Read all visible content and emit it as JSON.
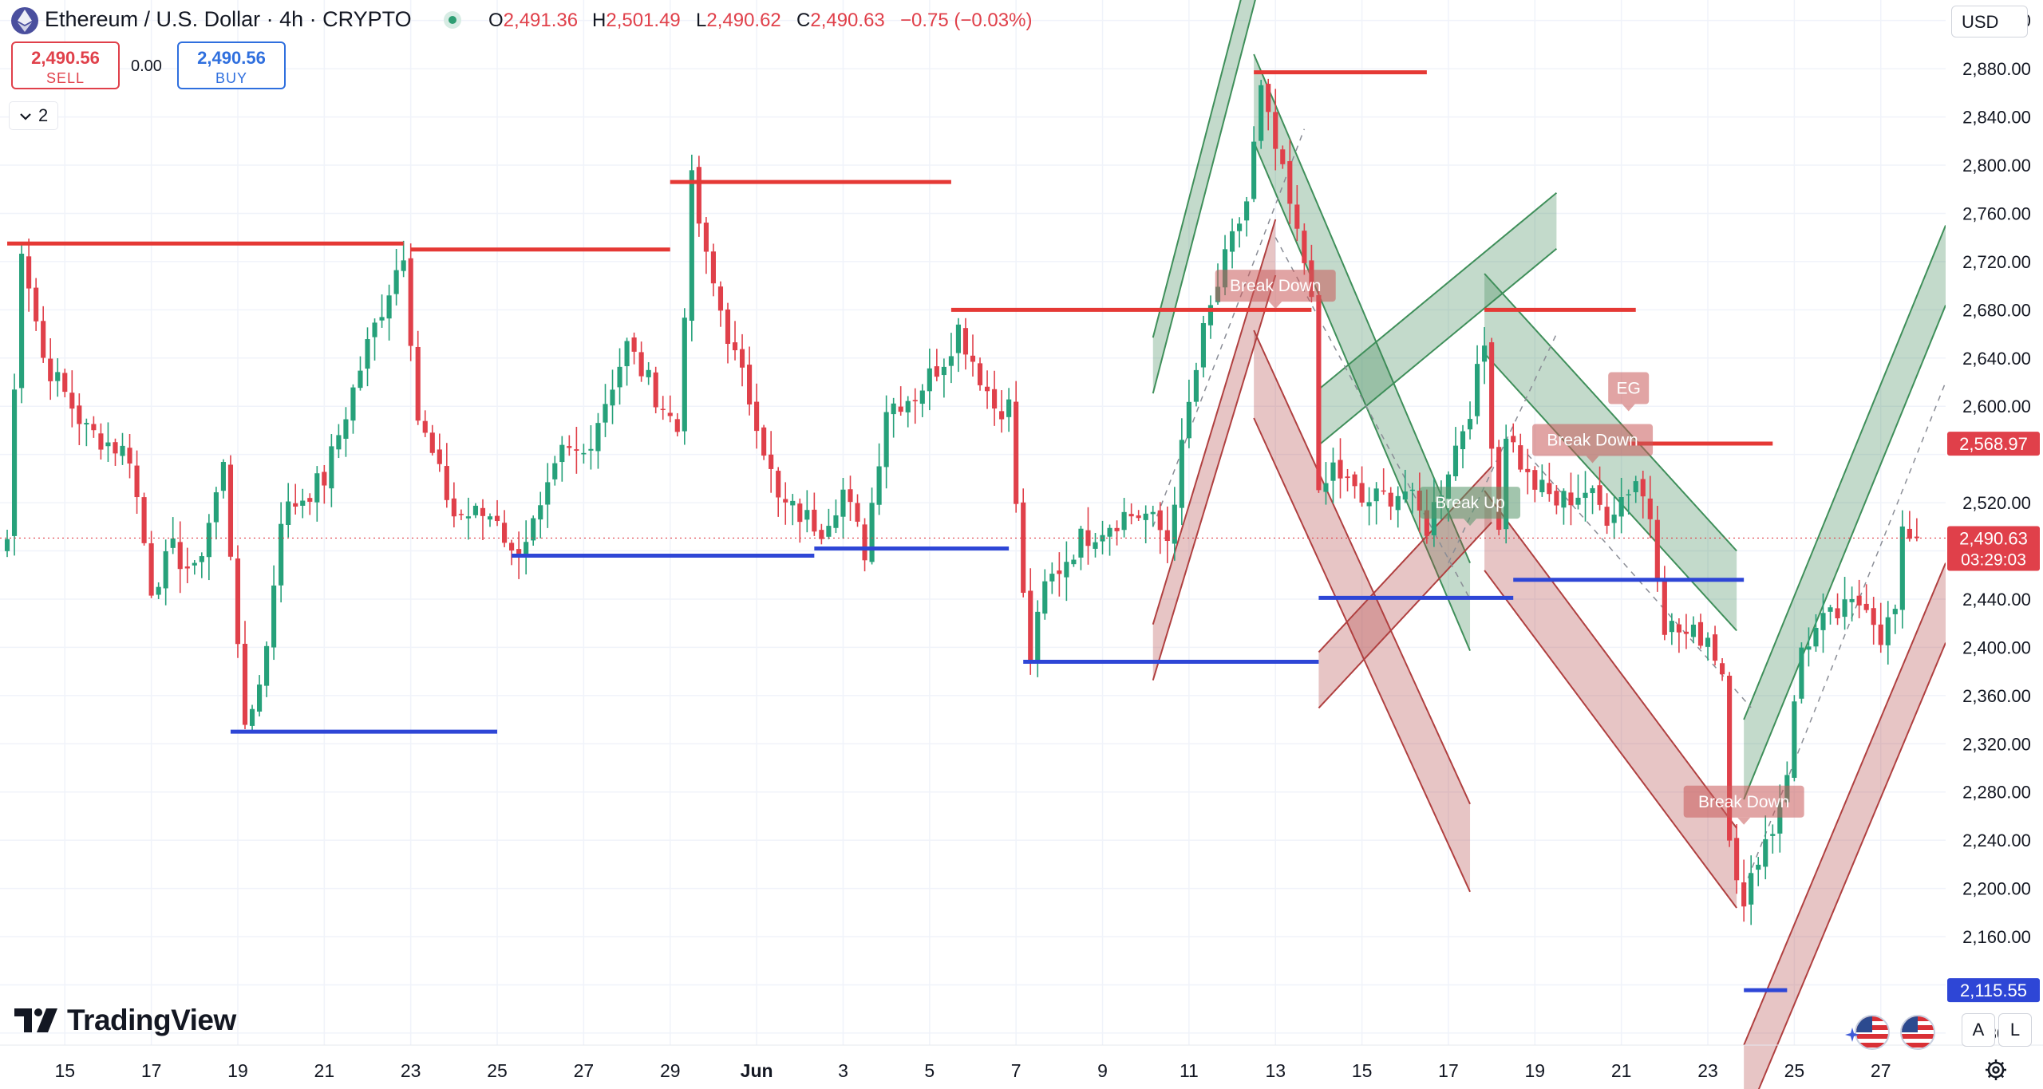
{
  "header": {
    "symbol_title": "Ethereum / U.S. Dollar · 4h · CRYPTO",
    "ohlc": [
      {
        "key": "O",
        "value": "2,491.36"
      },
      {
        "key": "H",
        "value": "2,501.49"
      },
      {
        "key": "L",
        "value": "2,490.62"
      },
      {
        "key": "C",
        "value": "2,490.63"
      }
    ],
    "change": "−0.75 (−0.03%)"
  },
  "trade": {
    "sell_price": "2,490.56",
    "sell_label": "SELL",
    "spread": "0.00",
    "buy_price": "2,490.56",
    "buy_label": "BUY"
  },
  "indicators_collapse": {
    "icon": "chevron-down-icon",
    "count": "2"
  },
  "currency": "USD",
  "brand": {
    "name": "TradingView"
  },
  "bottom_controls": {
    "auto": "A",
    "log": "L"
  },
  "colors": {
    "bull": "#26a17a",
    "bear": "#e0404a",
    "resistance": "#e53935",
    "support": "#2e46d6",
    "channel_green": "#3f8f5a",
    "channel_red": "#b04040"
  },
  "chart_data": {
    "type": "candlestick",
    "timeframe": "4h",
    "y_axis": {
      "ticks": [
        2080,
        2120,
        2160,
        2200,
        2240,
        2280,
        2320,
        2360,
        2400,
        2440,
        2480,
        2520,
        2560,
        2600,
        2640,
        2680,
        2720,
        2760,
        2800,
        2840,
        2880,
        2920
      ],
      "tick_labels": [
        "2,080.00",
        "2,160.00",
        "2,200.00",
        "2,240.00",
        "2,280.00",
        "2,320.00",
        "2,360.00",
        "2,400.00",
        "2,440.00",
        "2,520.00",
        "2,600.00",
        "2,640.00",
        "2,680.00",
        "2,720.00",
        "2,760.00",
        "2,800.00",
        "2,840.00",
        "2,880.00",
        "2,920.00"
      ],
      "tick_values": [
        2080,
        2160,
        2200,
        2240,
        2280,
        2320,
        2360,
        2400,
        2440,
        2520,
        2600,
        2640,
        2680,
        2720,
        2760,
        2800,
        2840,
        2880,
        2920
      ],
      "range": [
        2070,
        2937
      ]
    },
    "x_axis": {
      "tick_labels": [
        "15",
        "17",
        "19",
        "21",
        "23",
        "25",
        "27",
        "29",
        "Jun",
        "3",
        "5",
        "7",
        "9",
        "11",
        "13",
        "15",
        "17",
        "19",
        "21",
        "23",
        "25",
        "27"
      ],
      "range": [
        "May 13 12:00",
        "Jun 27 12:00"
      ]
    },
    "price_labels": [
      {
        "value": 2568.97,
        "text": "2,568.97",
        "kind": "level"
      },
      {
        "value": 2490.63,
        "text": "2,490.63",
        "sub": "03:29:03",
        "kind": "last"
      },
      {
        "value": 2115.55,
        "text": "2,115.55",
        "kind": "support"
      }
    ],
    "series": [
      {
        "name": "ETHUSD",
        "keypoints": [
          [
            "May 13 16:00",
            2490
          ],
          [
            "May 14 00:00",
            2735
          ],
          [
            "May 14 12:00",
            2640
          ],
          [
            "May 15 12:00",
            2580
          ],
          [
            "May 16 12:00",
            2560
          ],
          [
            "May 17 00:00",
            2450
          ],
          [
            "May 17 12:00",
            2480
          ],
          [
            "May 18 00:00",
            2460
          ],
          [
            "May 18 16:00",
            2550
          ],
          [
            "May 19 00:00",
            2410
          ],
          [
            "May 19 04:00",
            2325
          ],
          [
            "May 19 16:00",
            2400
          ],
          [
            "May 20 00:00",
            2510
          ],
          [
            "May 21 00:00",
            2540
          ],
          [
            "May 22 00:00",
            2650
          ],
          [
            "May 22 20:00",
            2730
          ],
          [
            "May 23 04:00",
            2590
          ],
          [
            "May 24 00:00",
            2510
          ],
          [
            "May 25 00:00",
            2510
          ],
          [
            "May 25 08:00",
            2475
          ],
          [
            "May 26 00:00",
            2510
          ],
          [
            "May 26 12:00",
            2560
          ],
          [
            "May 27 00:00",
            2560
          ],
          [
            "May 28 00:00",
            2650
          ],
          [
            "May 28 12:00",
            2620
          ],
          [
            "May 29 04:00",
            2580
          ],
          [
            "May 29 12:00",
            2785
          ],
          [
            "May 29 20:00",
            2720
          ],
          [
            "May 30 12:00",
            2640
          ],
          [
            "May 31 00:00",
            2590
          ],
          [
            "May 31 12:00",
            2520
          ],
          [
            "Jun 1 00:00",
            2510
          ],
          [
            "Jun 1 12:00",
            2500
          ],
          [
            "Jun 2 00:00",
            2530
          ],
          [
            "Jun 2 12:00",
            2480
          ],
          [
            "Jun 3 00:00",
            2600
          ],
          [
            "Jun 3 16:00",
            2610
          ],
          [
            "Jun 4 08:00",
            2640
          ],
          [
            "Jun 4 16:00",
            2665
          ],
          [
            "Jun 5 12:00",
            2600
          ],
          [
            "Jun 5 20:00",
            2600
          ],
          [
            "Jun 6 04:00",
            2440
          ],
          [
            "Jun 6 08:00",
            2390
          ],
          [
            "Jun 6 16:00",
            2450
          ],
          [
            "Jun 7 12:00",
            2490
          ],
          [
            "Jun 8 12:00",
            2510
          ],
          [
            "Jun 9 00:00",
            2510
          ],
          [
            "Jun 9 12:00",
            2490
          ],
          [
            "Jun 10 00:00",
            2600
          ],
          [
            "Jun 10 08:00",
            2660
          ],
          [
            "Jun 10 20:00",
            2720
          ],
          [
            "Jun 11 08:00",
            2770
          ],
          [
            "Jun 11 16:00",
            2860
          ],
          [
            "Jun 11 20:00",
            2835
          ],
          [
            "Jun 12 04:00",
            2790
          ],
          [
            "Jun 12 12:00",
            2740
          ],
          [
            "Jun 12 20:00",
            2700
          ],
          [
            "Jun 13 00:00",
            2520
          ],
          [
            "Jun 13 08:00",
            2550
          ],
          [
            "Jun 14 00:00",
            2520
          ],
          [
            "Jun 15 00:00",
            2530
          ],
          [
            "Jun 15 12:00",
            2500
          ],
          [
            "Jun 16 00:00",
            2550
          ],
          [
            "Jun 16 12:00",
            2600
          ],
          [
            "Jun 16 20:00",
            2650
          ],
          [
            "Jun 17 04:00",
            2500
          ],
          [
            "Jun 17 08:00",
            2580
          ],
          [
            "Jun 17 20:00",
            2540
          ],
          [
            "Jun 18 12:00",
            2520
          ],
          [
            "Jun 19 04:00",
            2530
          ],
          [
            "Jun 19 16:00",
            2510
          ],
          [
            "Jun 20 08:00",
            2540
          ],
          [
            "Jun 20 16:00",
            2510
          ],
          [
            "Jun 21 00:00",
            2420
          ],
          [
            "Jun 21 12:00",
            2410
          ],
          [
            "Jun 22 00:00",
            2410
          ],
          [
            "Jun 22 08:00",
            2380
          ],
          [
            "Jun 22 12:00",
            2250
          ],
          [
            "Jun 22 20:00",
            2180
          ],
          [
            "Jun 23 04:00",
            2230
          ],
          [
            "Jun 23 12:00",
            2250
          ],
          [
            "Jun 23 20:00",
            2300
          ],
          [
            "Jun 24 04:00",
            2400
          ],
          [
            "Jun 24 16:00",
            2420
          ],
          [
            "Jun 25 04:00",
            2430
          ],
          [
            "Jun 25 16:00",
            2440
          ],
          [
            "Jun 26 00:00",
            2410
          ],
          [
            "Jun 26 08:00",
            2430
          ],
          [
            "Jun 26 12:00",
            2490
          ],
          [
            "Jun 26 16:00",
            2495
          ],
          [
            "Jun 26 20:00",
            2490.63
          ]
        ]
      }
    ],
    "horizontal_levels": [
      {
        "kind": "resistance",
        "price": 2735,
        "from": "May 13 16:00",
        "to": "May 22 20:00"
      },
      {
        "kind": "resistance",
        "price": 2730,
        "from": "May 23 00:00",
        "to": "May 29 00:00"
      },
      {
        "kind": "resistance",
        "price": 2786,
        "from": "May 29 00:00",
        "to": "Jun 4 12:00"
      },
      {
        "kind": "resistance",
        "price": 2680,
        "from": "Jun 4 12:00",
        "to": "Jun 12 20:00"
      },
      {
        "kind": "resistance",
        "price": 2877,
        "from": "Jun 11 12:00",
        "to": "Jun 15 12:00"
      },
      {
        "kind": "resistance",
        "price": 2680,
        "from": "Jun 16 20:00",
        "to": "Jun 20 08:00"
      },
      {
        "kind": "resistance",
        "price": 2569,
        "from": "Jun 20 04:00",
        "to": "Jun 23 12:00"
      },
      {
        "kind": "support",
        "price": 2330,
        "from": "May 18 20:00",
        "to": "May 25 00:00"
      },
      {
        "kind": "support",
        "price": 2476,
        "from": "May 25 08:00",
        "to": "Jun 1 08:00"
      },
      {
        "kind": "support",
        "price": 2482,
        "from": "Jun 1 08:00",
        "to": "Jun 5 20:00"
      },
      {
        "kind": "support",
        "price": 2388,
        "from": "Jun 6 04:00",
        "to": "Jun 13 00:00"
      },
      {
        "kind": "support",
        "price": 2441,
        "from": "Jun 13 00:00",
        "to": "Jun 17 12:00"
      },
      {
        "kind": "support",
        "price": 2456,
        "from": "Jun 17 12:00",
        "to": "Jun 22 20:00"
      },
      {
        "kind": "support",
        "price": 2115.55,
        "from": "Jun 22 20:00",
        "to": "Jun 23 20:00"
      }
    ],
    "channels": [
      {
        "color": "green",
        "from": [
          "Jun 9 04:00",
          2657
        ],
        "to": [
          "Jun 12 00:00",
          3048
        ],
        "width": 70
      },
      {
        "color": "red",
        "from": [
          "Jun 9 04:00",
          2419
        ],
        "to": [
          "Jun 12 00:00",
          2755
        ],
        "width": 70
      },
      {
        "color": "green",
        "from": [
          "Jun 11 12:00",
          2892
        ],
        "to": [
          "Jun 16 12:00",
          2470
        ],
        "width": 110
      },
      {
        "color": "red",
        "from": [
          "Jun 11 12:00",
          2663
        ],
        "to": [
          "Jun 16 12:00",
          2270
        ],
        "width": 110
      },
      {
        "color": "green",
        "from": [
          "Jun 13 00:00",
          2614
        ],
        "to": [
          "Jun 18 12:00",
          2777
        ],
        "width": 70
      },
      {
        "color": "red",
        "from": [
          "Jun 13 00:00",
          2396
        ],
        "to": [
          "Jun 17 00:00",
          2550
        ],
        "width": 70
      },
      {
        "color": "green",
        "from": [
          "Jun 16 20:00",
          2710
        ],
        "to": [
          "Jun 22 16:00",
          2480
        ],
        "width": 100
      },
      {
        "color": "red",
        "from": [
          "Jun 16 20:00",
          2530
        ],
        "to": [
          "Jun 22 16:00",
          2250
        ],
        "width": 100
      },
      {
        "color": "green",
        "from": [
          "Jun 22 20:00",
          2340
        ],
        "to": [
          "Jun 27 12:00",
          2750
        ],
        "width": 100
      },
      {
        "color": "red",
        "from": [
          "Jun 22 20:00",
          2070
        ],
        "to": [
          "Jun 27 12:00",
          2470
        ],
        "width": 100
      }
    ],
    "dashed_lines": [
      {
        "from": [
          "Jun 9 04:00",
          2500
        ],
        "to": [
          "Jun 12 16:00",
          2830
        ]
      },
      {
        "from": [
          "Jun 12 00:00",
          2740
        ],
        "to": [
          "Jun 16 12:00",
          2440
        ]
      },
      {
        "from": [
          "Jun 16 00:00",
          2470
        ],
        "to": [
          "Jun 18 12:00",
          2660
        ]
      },
      {
        "from": [
          "Jun 17 20:00",
          2560
        ],
        "to": [
          "Jun 23 00:00",
          2350
        ]
      },
      {
        "from": [
          "Jun 22 20:00",
          2200
        ],
        "to": [
          "Jun 27 12:00",
          2620
        ]
      }
    ],
    "annotations": [
      {
        "text": "Break Down",
        "at": [
          "Jun 12 00:00",
          2700
        ],
        "style": "bear"
      },
      {
        "text": "Break Up",
        "at": [
          "Jun 16 12:00",
          2520
        ],
        "style": "bull"
      },
      {
        "text": "Break Down",
        "at": [
          "Jun 19 08:00",
          2572
        ],
        "style": "bear"
      },
      {
        "text": "EG",
        "at": [
          "Jun 20 04:00",
          2615
        ],
        "style": "bear"
      },
      {
        "text": "Break Down",
        "at": [
          "Jun 22 20:00",
          2272
        ],
        "style": "bear"
      }
    ]
  }
}
